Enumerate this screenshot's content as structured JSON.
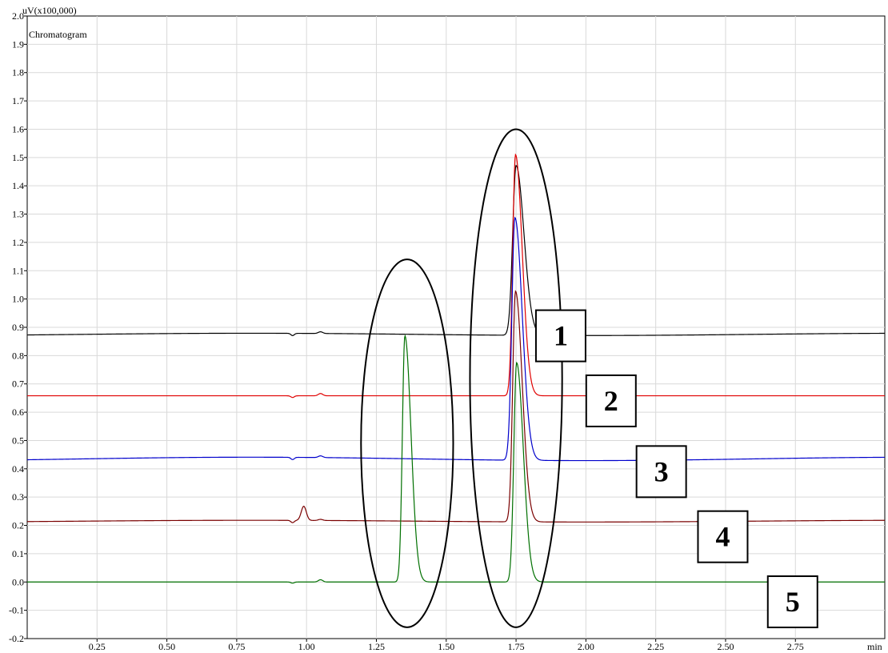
{
  "chart_data": {
    "type": "line",
    "title": "Chromatogram",
    "xlabel": "min",
    "ylabel": "uV(x100,000)",
    "xlim": [
      0.0,
      3.07
    ],
    "ylim": [
      -0.2,
      2.0
    ],
    "x_ticks": [
      0.25,
      0.5,
      0.75,
      1.0,
      1.25,
      1.5,
      1.75,
      2.0,
      2.25,
      2.5,
      2.75
    ],
    "x_tick_labels": [
      "0.25",
      "0.50",
      "0.75",
      "1.00",
      "1.25",
      "1.50",
      "1.75",
      "2.00",
      "2.25",
      "2.50",
      "2.75"
    ],
    "y_ticks": [
      -0.2,
      -0.1,
      0.0,
      0.1,
      0.2,
      0.3,
      0.4,
      0.5,
      0.6,
      0.7,
      0.8,
      0.9,
      1.0,
      1.1,
      1.2,
      1.3,
      1.4,
      1.5,
      1.6,
      1.7,
      1.8,
      1.9,
      2.0
    ],
    "y_tick_labels": [
      "-0.2",
      "-0.1",
      "0.0",
      "0.1",
      "0.2",
      "0.3",
      "0.4",
      "0.5",
      "0.6",
      "0.7",
      "0.8",
      "0.9",
      "1.0",
      "1.1",
      "1.2",
      "1.3",
      "1.4",
      "1.5",
      "1.6",
      "1.7",
      "1.8",
      "1.9",
      "2.0"
    ],
    "grid": true,
    "series": [
      {
        "label": "1",
        "color": "#000000",
        "baseline": 0.875,
        "baseline_drift": 0.004,
        "peaks": [
          {
            "x": 0.95,
            "height": -0.008,
            "width": 0.006
          },
          {
            "x": 1.05,
            "height": 0.006,
            "width": 0.008
          },
          {
            "x": 1.75,
            "height": 0.6,
            "width": 0.012,
            "tail": 0.028
          }
        ]
      },
      {
        "label": "2",
        "color": "#e00000",
        "baseline": 0.658,
        "baseline_drift": 0.0,
        "peaks": [
          {
            "x": 0.95,
            "height": -0.006,
            "width": 0.006
          },
          {
            "x": 1.05,
            "height": 0.008,
            "width": 0.008
          },
          {
            "x": 1.748,
            "height": 0.852,
            "width": 0.01,
            "tail": 0.024
          }
        ]
      },
      {
        "label": "3",
        "color": "#0000cc",
        "baseline": 0.435,
        "baseline_drift": 0.006,
        "peaks": [
          {
            "x": 0.95,
            "height": -0.008,
            "width": 0.006
          },
          {
            "x": 1.05,
            "height": 0.006,
            "width": 0.008
          },
          {
            "x": 1.746,
            "height": 0.857,
            "width": 0.011,
            "tail": 0.026
          }
        ]
      },
      {
        "label": "4",
        "color": "#7a0000",
        "baseline": 0.215,
        "baseline_drift": 0.003,
        "peaks": [
          {
            "x": 0.95,
            "height": -0.008,
            "width": 0.006
          },
          {
            "x": 0.99,
            "height": 0.05,
            "width": 0.009
          },
          {
            "x": 1.05,
            "height": 0.004,
            "width": 0.008
          },
          {
            "x": 1.748,
            "height": 0.815,
            "width": 0.01,
            "tail": 0.024
          }
        ]
      },
      {
        "label": "5",
        "color": "#007000",
        "baseline": 0.0,
        "baseline_drift": 0.0,
        "peaks": [
          {
            "x": 0.95,
            "height": -0.004,
            "width": 0.006
          },
          {
            "x": 1.05,
            "height": 0.008,
            "width": 0.008
          },
          {
            "x": 1.352,
            "height": 0.87,
            "width": 0.009,
            "tail": 0.022
          },
          {
            "x": 1.752,
            "height": 0.775,
            "width": 0.01,
            "tail": 0.024
          }
        ]
      }
    ],
    "annotations": {
      "ellipses": [
        {
          "cx": 1.36,
          "cy": 0.49,
          "rx": 0.165,
          "ry": 0.65
        },
        {
          "cx": 1.75,
          "cy": 0.72,
          "rx": 0.165,
          "ry": 0.88
        }
      ],
      "label_boxes": [
        {
          "text": "1",
          "x": 1.91,
          "y": 0.87
        },
        {
          "text": "2",
          "x": 2.09,
          "y": 0.64
        },
        {
          "text": "3",
          "x": 2.27,
          "y": 0.39
        },
        {
          "text": "4",
          "x": 2.49,
          "y": 0.16
        },
        {
          "text": "5",
          "x": 2.74,
          "y": -0.07
        }
      ]
    }
  }
}
